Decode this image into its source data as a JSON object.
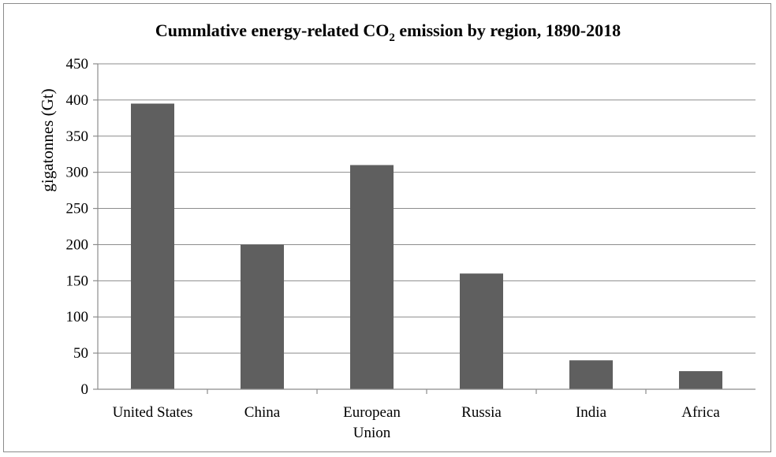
{
  "chart_data": {
    "type": "bar",
    "title_main": "Cummlative energy-related  CO",
    "title_sub": "2",
    "title_rest": " emission  by region, 1890-2018",
    "ylabel": "gigatonnes  (Gt)",
    "xlabel": "",
    "ylim": [
      0,
      450
    ],
    "yticks": [
      0,
      50,
      100,
      150,
      200,
      250,
      300,
      350,
      400,
      450
    ],
    "categories": [
      [
        "United States"
      ],
      [
        "China"
      ],
      [
        "European",
        "Union"
      ],
      [
        "Russia"
      ],
      [
        "India"
      ],
      [
        "Africa"
      ]
    ],
    "values": [
      395,
      200,
      310,
      160,
      40,
      25
    ],
    "grid": true,
    "legend": "none",
    "bar_color": "#5f5f5f"
  }
}
